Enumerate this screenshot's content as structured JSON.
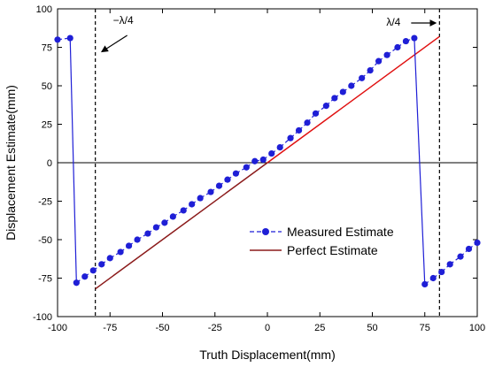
{
  "chart_data": {
    "type": "line",
    "xlabel": "Truth Displacement(mm)",
    "ylabel": "Displacement Estimate(mm)",
    "xlim": [
      -100,
      100
    ],
    "ylim": [
      -100,
      100
    ],
    "xticks": [
      -100,
      -75,
      -50,
      -25,
      0,
      25,
      50,
      75,
      100
    ],
    "yticks": [
      100,
      75,
      50,
      25,
      0,
      -25,
      -50,
      -75,
      -100
    ],
    "grid": false,
    "legend_position": "lower-right",
    "colors": {
      "measured": "#1f1fd6",
      "perfect": "#e01010",
      "perfect_lower": "#8b1a1a",
      "annotation": "#000000"
    },
    "series": [
      {
        "name": "Measured Estimate",
        "style": "dashed-line-with-dots",
        "x": [
          -100,
          -94,
          -91,
          -87,
          -83,
          -79,
          -75,
          -70,
          -66,
          -62,
          -57,
          -53,
          -49,
          -45,
          -40,
          -36,
          -32,
          -27,
          -23,
          -19,
          -15,
          -10,
          -6,
          -2,
          2,
          6,
          11,
          15,
          19,
          23,
          28,
          32,
          36,
          40,
          45,
          49,
          53,
          57,
          62,
          66,
          70,
          75,
          79,
          83,
          87,
          92,
          96,
          100
        ],
        "y": [
          80,
          81,
          -78,
          -74,
          -70,
          -66,
          -62,
          -58,
          -54,
          -50,
          -46,
          -42,
          -39,
          -35,
          -31,
          -27,
          -23,
          -19,
          -15,
          -11,
          -7,
          -3,
          1,
          2,
          6,
          10,
          16,
          21,
          26,
          32,
          37,
          42,
          46,
          50,
          55,
          60,
          66,
          70,
          75,
          79,
          81,
          -79,
          -75,
          -71,
          -66,
          -61,
          -56,
          -52
        ]
      },
      {
        "name": "Perfect Estimate",
        "style": "solid-line",
        "x": [
          -82,
          82
        ],
        "y": [
          -82,
          82
        ]
      }
    ],
    "annotations": [
      {
        "text": "−λ/4",
        "x": -82,
        "arrow": "down-left"
      },
      {
        "text": "λ/4",
        "x": 82,
        "arrow": "right"
      }
    ],
    "vlines": [
      -82,
      82
    ]
  }
}
